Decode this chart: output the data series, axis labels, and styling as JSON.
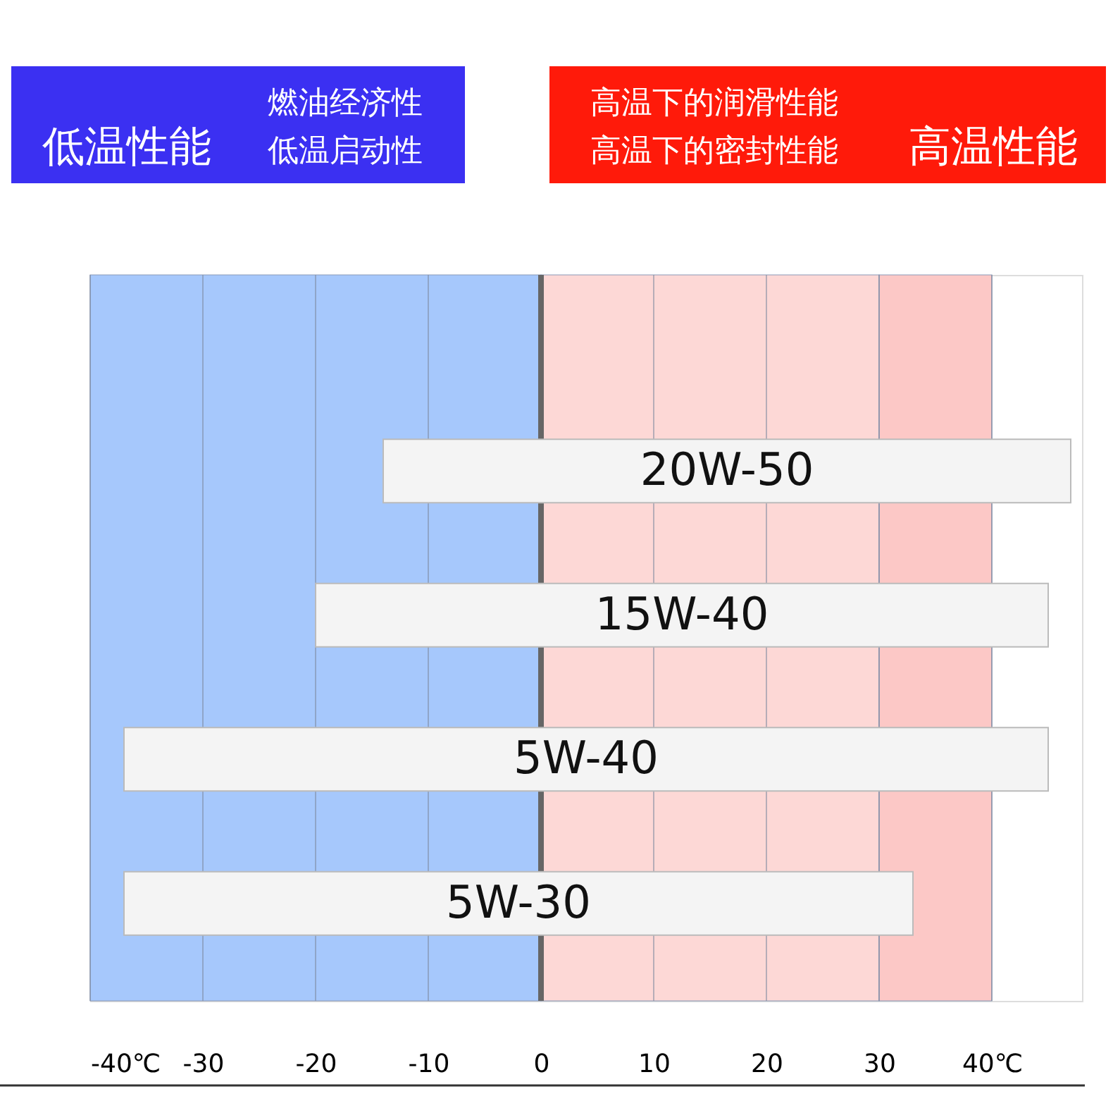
{
  "chart_data": {
    "type": "bar",
    "orientation": "horizontal",
    "categories": [
      "20W-50",
      "15W-40",
      "5W-40",
      "5W-30"
    ],
    "base": [
      -14,
      -20,
      -37,
      -37
    ],
    "values": [
      61,
      65,
      82,
      70
    ],
    "color": "#f4f4f4",
    "xlim": [
      -40,
      48
    ],
    "xticks": [
      {
        "value": -40,
        "label": "-40℃"
      },
      -30,
      -20,
      -10,
      0,
      10,
      20,
      30,
      {
        "value": 40,
        "label": "40℃"
      }
    ],
    "grid": "x",
    "bands": [
      {
        "axis": "x",
        "from": -40,
        "to": 0,
        "color": "#a6c8fc"
      },
      {
        "axis": "x",
        "from": 0,
        "to": 30,
        "color": "#fdd8d6"
      },
      {
        "axis": "x",
        "from": 30,
        "to": 40,
        "color": "#fcc8c6"
      }
    ],
    "ref_lines": [
      {
        "axis": "x",
        "value": 0,
        "color": "#666666"
      }
    ],
    "annotations": [
      "低温性能",
      "燃油经济性",
      "低温启动性",
      "高温下的润滑性能",
      "高温下的密封性能",
      "高温性能"
    ]
  }
}
